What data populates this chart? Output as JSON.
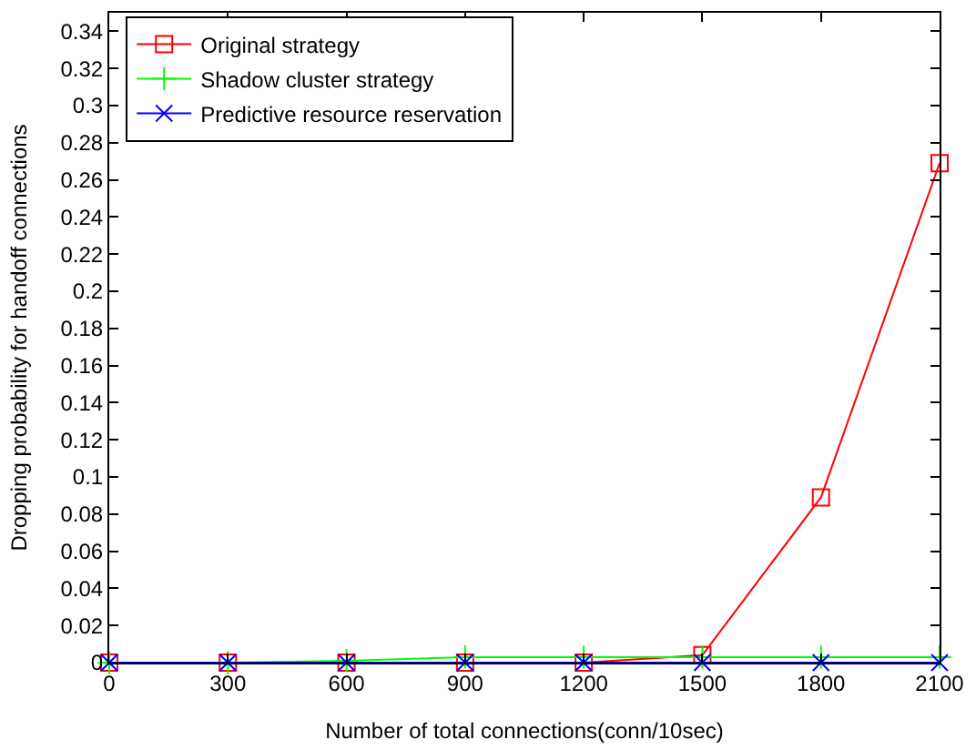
{
  "chart_data": {
    "type": "line",
    "xlabel": "Number of total connections(conn/10sec)",
    "ylabel": "Dropping probability for handoff connections",
    "x": [
      0,
      300,
      600,
      900,
      1200,
      1500,
      1800,
      2100
    ],
    "series": [
      {
        "name": "Original strategy",
        "color": "#ff0000",
        "marker": "square",
        "values": [
          0,
          0,
          0,
          0,
          0,
          0.004,
          0.089,
          0.269
        ]
      },
      {
        "name": "Shadow cluster strategy",
        "color": "#00ff00",
        "marker": "cross",
        "values": [
          0,
          0,
          0.001,
          0.003,
          0.003,
          0.003,
          0.003,
          0.003
        ]
      },
      {
        "name": "Predictive resource reservation",
        "color": "#0000ff",
        "marker": "x",
        "values": [
          0,
          0,
          0,
          0,
          0,
          0,
          0,
          0
        ]
      }
    ],
    "xlim": [
      0,
      2100
    ],
    "xticks": [
      0,
      300,
      600,
      900,
      1200,
      1500,
      1800,
      2100
    ],
    "ylim": [
      0,
      0.35
    ],
    "yticks": [
      0,
      0.02,
      0.04,
      0.06,
      0.08,
      0.1,
      0.12,
      0.14,
      0.16,
      0.18,
      0.2,
      0.22,
      0.24,
      0.26,
      0.28,
      0.3,
      0.32,
      0.34
    ],
    "grid": false,
    "legend": "top left",
    "line_style": "solid"
  }
}
